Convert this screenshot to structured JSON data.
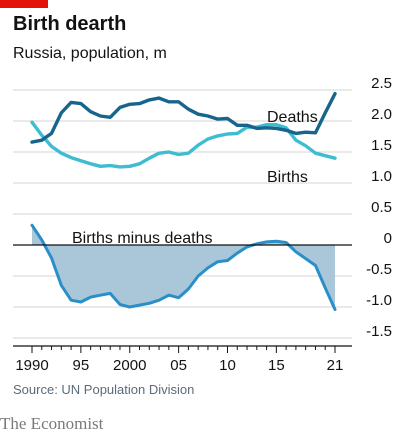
{
  "header": {
    "title": "Birth dearth",
    "subtitle": "Russia, population, m",
    "accent_color": "#e3120b"
  },
  "footer": {
    "source": "Source: UN Population Division",
    "brand": "The Economist"
  },
  "colors": {
    "deaths": "#17648d",
    "births": "#3ebcd2",
    "difference_fill": "#a9c7d8",
    "difference_line": "#2a8fc9",
    "grid": "#d5d5d5",
    "axis": "#121212"
  },
  "chart_data": [
    {
      "type": "line",
      "subtitle": "Russia, population, m",
      "x": [
        1990,
        1991,
        1992,
        1993,
        1994,
        1995,
        1996,
        1997,
        1998,
        1999,
        2000,
        2001,
        2002,
        2003,
        2004,
        2005,
        2006,
        2007,
        2008,
        2009,
        2010,
        2011,
        2012,
        2013,
        2014,
        2015,
        2016,
        2017,
        2018,
        2019,
        2020,
        2021
      ],
      "series": [
        {
          "name": "Deaths",
          "values": [
            1.66,
            1.69,
            1.8,
            2.13,
            2.3,
            2.28,
            2.15,
            2.08,
            2.06,
            2.22,
            2.27,
            2.28,
            2.34,
            2.37,
            2.31,
            2.31,
            2.19,
            2.11,
            2.08,
            2.03,
            2.04,
            1.93,
            1.93,
            1.88,
            1.89,
            1.88,
            1.85,
            1.8,
            1.82,
            1.81,
            2.13,
            2.44
          ]
        },
        {
          "name": "Births",
          "values": [
            1.98,
            1.77,
            1.59,
            1.48,
            1.41,
            1.36,
            1.31,
            1.27,
            1.28,
            1.26,
            1.27,
            1.31,
            1.4,
            1.48,
            1.5,
            1.46,
            1.48,
            1.61,
            1.71,
            1.76,
            1.79,
            1.8,
            1.9,
            1.9,
            1.94,
            1.94,
            1.89,
            1.69,
            1.6,
            1.48,
            1.44,
            1.4
          ]
        }
      ],
      "yticks": [
        "2.5",
        "2.0",
        "1.5",
        "1.0",
        "0.5"
      ],
      "ylim": [
        0.5,
        2.5
      ],
      "grid": true
    },
    {
      "type": "area",
      "x": [
        1990,
        1991,
        1992,
        1993,
        1994,
        1995,
        1996,
        1997,
        1998,
        1999,
        2000,
        2001,
        2002,
        2003,
        2004,
        2005,
        2006,
        2007,
        2008,
        2009,
        2010,
        2011,
        2012,
        2013,
        2014,
        2015,
        2016,
        2017,
        2018,
        2019,
        2020,
        2021
      ],
      "series": [
        {
          "name": "Births minus deaths",
          "values": [
            0.32,
            0.08,
            -0.21,
            -0.65,
            -0.89,
            -0.92,
            -0.84,
            -0.81,
            -0.78,
            -0.96,
            -1.0,
            -0.97,
            -0.94,
            -0.89,
            -0.81,
            -0.85,
            -0.71,
            -0.5,
            -0.37,
            -0.27,
            -0.25,
            -0.13,
            -0.03,
            0.02,
            0.05,
            0.06,
            0.04,
            -0.11,
            -0.22,
            -0.33,
            -0.69,
            -1.04
          ]
        }
      ],
      "yticks": [
        "0",
        "-0.5",
        "-1.0",
        "-1.5"
      ],
      "ylim": [
        -1.5,
        0
      ],
      "grid": true
    }
  ],
  "xaxis": {
    "ticks": [
      1990,
      1995,
      2000,
      2005,
      2010,
      2015,
      2021
    ],
    "tick_labels": [
      "1990",
      "95",
      "2000",
      "05",
      "10",
      "15",
      "21"
    ]
  }
}
